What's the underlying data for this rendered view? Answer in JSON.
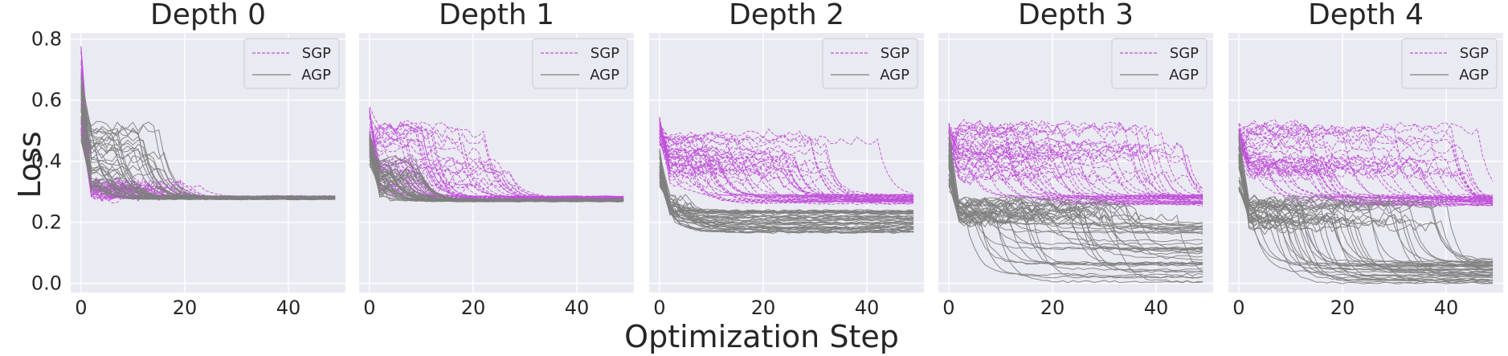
{
  "chart_data": {
    "type": "line",
    "xlabel": "Optimization Step",
    "ylabel": "Loss",
    "xlim": [
      -2,
      51
    ],
    "ylim": [
      -0.03,
      0.82
    ],
    "xticks": [
      0,
      20,
      40
    ],
    "yticks": [
      0.0,
      0.2,
      0.4,
      0.6,
      0.8
    ],
    "xtick_labels": [
      "0",
      "20",
      "40"
    ],
    "ytick_labels": [
      "0.0",
      "0.2",
      "0.4",
      "0.6",
      "0.8"
    ],
    "legend": [
      {
        "label": "SGP",
        "color": "#c050d8",
        "style": "dashed"
      },
      {
        "label": "AGP",
        "color": "#808080",
        "style": "solid"
      }
    ],
    "legend_position": "top-right",
    "grid": true,
    "runs_per_series": 40,
    "steps": 50,
    "panels": [
      {
        "title": "Depth 0",
        "series": [
          {
            "name": "SGP",
            "start": [
              0.5,
              0.78
            ],
            "plateau": [
              0.28,
              0.33
            ],
            "final": [
              0.277,
              0.285
            ],
            "drop_step": [
              1,
              24
            ],
            "final_spread": 0.006
          },
          {
            "name": "AGP",
            "start": [
              0.45,
              0.7
            ],
            "plateau": [
              0.3,
              0.52
            ],
            "final": [
              0.275,
              0.285
            ],
            "drop_step": [
              1,
              16
            ],
            "final_spread": 0.004
          }
        ]
      },
      {
        "title": "Depth 1",
        "series": [
          {
            "name": "SGP",
            "start": [
              0.4,
              0.58
            ],
            "plateau": [
              0.3,
              0.53
            ],
            "final": [
              0.27,
              0.285
            ],
            "drop_step": [
              2,
              28
            ],
            "final_spread": 0.005
          },
          {
            "name": "AGP",
            "start": [
              0.38,
              0.5
            ],
            "plateau": [
              0.28,
              0.4
            ],
            "final": [
              0.268,
              0.276
            ],
            "drop_step": [
              1,
              10
            ],
            "final_spread": 0.004
          }
        ]
      },
      {
        "title": "Depth 2",
        "series": [
          {
            "name": "SGP",
            "start": [
              0.45,
              0.55
            ],
            "plateau": [
              0.33,
              0.5
            ],
            "final": [
              0.26,
              0.29
            ],
            "drop_step": [
              2,
              42
            ],
            "final_spread": 0.006
          },
          {
            "name": "AGP",
            "start": [
              0.32,
              0.45
            ],
            "plateau": [
              0.22,
              0.29
            ],
            "final": [
              0.16,
              0.24
            ],
            "drop_step": [
              1,
              6
            ],
            "final_spread": 0.008
          }
        ]
      },
      {
        "title": "Depth 3",
        "series": [
          {
            "name": "SGP",
            "start": [
              0.4,
              0.53
            ],
            "plateau": [
              0.34,
              0.52
            ],
            "final": [
              0.255,
              0.29
            ],
            "drop_step": [
              2,
              46
            ],
            "final_spread": 0.006
          },
          {
            "name": "AGP",
            "start": [
              0.3,
              0.5
            ],
            "plateau": [
              0.2,
              0.27
            ],
            "final": [
              0.0,
              0.2
            ],
            "drop_step": [
              1,
              44
            ],
            "final_spread": 0.008
          }
        ]
      },
      {
        "title": "Depth 4",
        "series": [
          {
            "name": "SGP",
            "start": [
              0.4,
              0.53
            ],
            "plateau": [
              0.34,
              0.52
            ],
            "final": [
              0.255,
              0.29
            ],
            "drop_step": [
              2,
              46
            ],
            "final_spread": 0.006
          },
          {
            "name": "AGP",
            "start": [
              0.3,
              0.5
            ],
            "plateau": [
              0.18,
              0.27
            ],
            "final": [
              0.0,
              0.08
            ],
            "drop_step": [
              1,
              42
            ],
            "final_spread": 0.006
          }
        ]
      }
    ]
  }
}
